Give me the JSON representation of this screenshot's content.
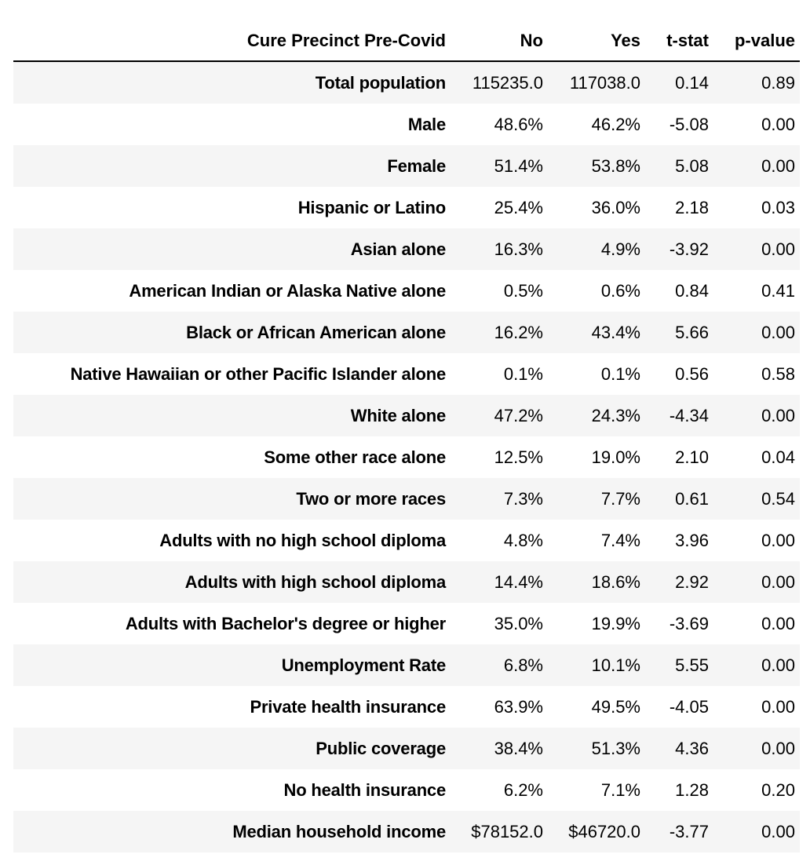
{
  "chart_data": {
    "type": "table",
    "columns": [
      "Cure Precinct Pre-Covid",
      "No",
      "Yes",
      "t-stat",
      "p-value"
    ],
    "rows": [
      {
        "label": "Total population",
        "no": "115235.0",
        "yes": "117038.0",
        "t_stat": "0.14",
        "p_value": "0.89"
      },
      {
        "label": "Male",
        "no": "48.6%",
        "yes": "46.2%",
        "t_stat": "-5.08",
        "p_value": "0.00"
      },
      {
        "label": "Female",
        "no": "51.4%",
        "yes": "53.8%",
        "t_stat": "5.08",
        "p_value": "0.00"
      },
      {
        "label": "Hispanic or Latino",
        "no": "25.4%",
        "yes": "36.0%",
        "t_stat": "2.18",
        "p_value": "0.03"
      },
      {
        "label": "Asian alone",
        "no": "16.3%",
        "yes": "4.9%",
        "t_stat": "-3.92",
        "p_value": "0.00"
      },
      {
        "label": "American Indian or Alaska Native alone",
        "no": "0.5%",
        "yes": "0.6%",
        "t_stat": "0.84",
        "p_value": "0.41"
      },
      {
        "label": "Black or African American alone",
        "no": "16.2%",
        "yes": "43.4%",
        "t_stat": "5.66",
        "p_value": "0.00"
      },
      {
        "label": "Native Hawaiian or other Pacific Islander alone",
        "no": "0.1%",
        "yes": "0.1%",
        "t_stat": "0.56",
        "p_value": "0.58"
      },
      {
        "label": "White alone",
        "no": "47.2%",
        "yes": "24.3%",
        "t_stat": "-4.34",
        "p_value": "0.00"
      },
      {
        "label": "Some other race alone",
        "no": "12.5%",
        "yes": "19.0%",
        "t_stat": "2.10",
        "p_value": "0.04"
      },
      {
        "label": "Two or more races",
        "no": "7.3%",
        "yes": "7.7%",
        "t_stat": "0.61",
        "p_value": "0.54"
      },
      {
        "label": "Adults with no high school diploma",
        "no": "4.8%",
        "yes": "7.4%",
        "t_stat": "3.96",
        "p_value": "0.00"
      },
      {
        "label": "Adults with high school diploma",
        "no": "14.4%",
        "yes": "18.6%",
        "t_stat": "2.92",
        "p_value": "0.00"
      },
      {
        "label": "Adults with Bachelor's degree or higher",
        "no": "35.0%",
        "yes": "19.9%",
        "t_stat": "-3.69",
        "p_value": "0.00"
      },
      {
        "label": "Unemployment Rate",
        "no": "6.8%",
        "yes": "10.1%",
        "t_stat": "5.55",
        "p_value": "0.00"
      },
      {
        "label": "Private health insurance",
        "no": "63.9%",
        "yes": "49.5%",
        "t_stat": "-4.05",
        "p_value": "0.00"
      },
      {
        "label": "Public coverage",
        "no": "38.4%",
        "yes": "51.3%",
        "t_stat": "4.36",
        "p_value": "0.00"
      },
      {
        "label": "No health insurance",
        "no": "6.2%",
        "yes": "7.1%",
        "t_stat": "1.28",
        "p_value": "0.20"
      },
      {
        "label": "Median household income",
        "no": "$78152.0",
        "yes": "$46720.0",
        "t_stat": "-3.77",
        "p_value": "0.00"
      }
    ]
  },
  "colors": {
    "row_stripe": "#f5f5f5",
    "row_plain": "#ffffff",
    "text": "#000000",
    "header_rule": "#000000"
  }
}
